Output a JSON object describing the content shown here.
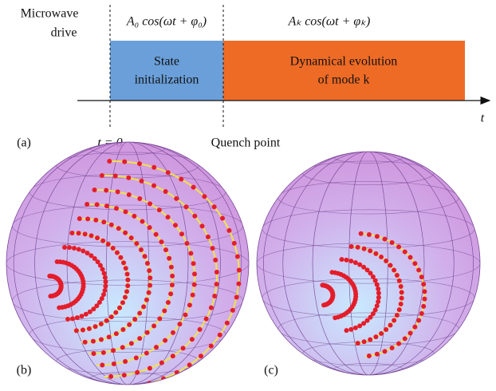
{
  "panel_a": {
    "label": "(a)",
    "drive_label": [
      "Microwave",
      "drive"
    ],
    "initial_drive": "A₀ cos(ωt + φ₀)",
    "evolution_drive": "Aₖ cos(ωt + φₖ)",
    "initialization_block": [
      "State",
      "initialization"
    ],
    "evolution_block": [
      "Dynamical evolution",
      "of mode k"
    ],
    "time_axis": "t",
    "start_marker": "t = 0",
    "quench_marker": "Quench point"
  },
  "panel_b": {
    "label": "(b)"
  },
  "panel_c": {
    "label": "(c)"
  }
}
